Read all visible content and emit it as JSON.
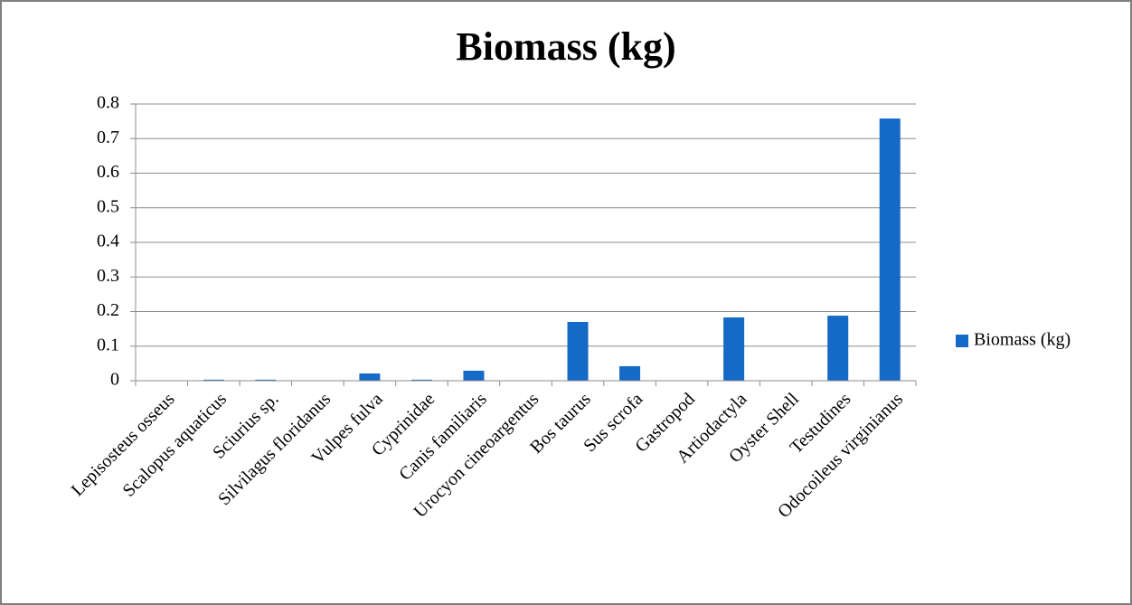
{
  "chart_data": {
    "type": "bar",
    "title": "Biomass (kg)",
    "categories": [
      "Lepisosteus osseus",
      "Scalopus aquaticus",
      "Sciurius sp.",
      "Silvilagus floridanus",
      "Vulpes fulva",
      "Cyprinidae",
      "Canis familiaris",
      "Urocyon cineoargentus",
      "Bos taurus",
      "Sus scrofa",
      "Gastropod",
      "Artiodactyla",
      "Oyster Shell",
      "Testudines",
      "Odocoileus virginianus"
    ],
    "series": [
      {
        "name": "Biomass (kg)",
        "color": "#1569c7",
        "values": [
          0,
          0.003,
          0.003,
          0,
          0.021,
          0.003,
          0.029,
          0,
          0.17,
          0.042,
          0,
          0.183,
          0,
          0.188,
          0.758
        ]
      }
    ],
    "ylim": [
      0,
      0.8
    ],
    "yticks": [
      0,
      0.1,
      0.2,
      0.3,
      0.4,
      0.5,
      0.6,
      0.7,
      0.8
    ],
    "grid": true,
    "legend": "right"
  }
}
